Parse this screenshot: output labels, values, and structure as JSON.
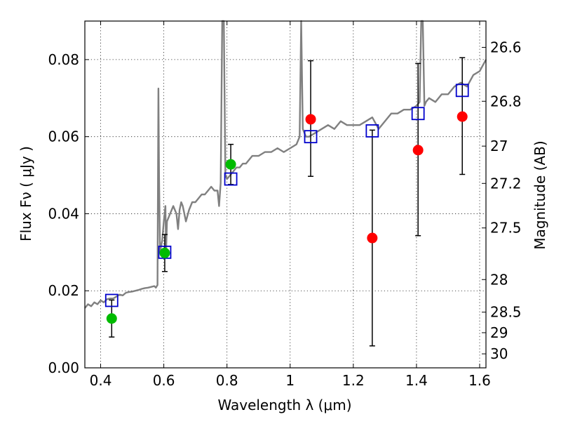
{
  "chart_data": {
    "type": "scatter",
    "xlabel": "Wavelength  λ (μm)",
    "ylabel": "Flux  Fν  ( μJy )",
    "ylabel_right": "Magnitude (AB)",
    "xlim": [
      0.35,
      1.62
    ],
    "ylim": [
      0.0,
      0.09
    ],
    "x_ticks": [
      0.4,
      0.6,
      0.8,
      1.0,
      1.2,
      1.4,
      1.6
    ],
    "x_tick_labels": [
      "0.4",
      "0.6",
      "0.8",
      "1",
      "1.2",
      "1.4",
      "1.6"
    ],
    "y_ticks": [
      0.0,
      0.02,
      0.04,
      0.06,
      0.08
    ],
    "y_tick_labels": [
      "0.00",
      "0.02",
      "0.04",
      "0.06",
      "0.08"
    ],
    "mag_ticks": [
      26.6,
      26.8,
      27,
      27.2,
      27.5,
      28,
      28.5,
      29,
      30
    ],
    "mag_tick_labels": [
      "26.6",
      "26.8",
      "27",
      "27.2",
      "27.5",
      "28",
      "28.5",
      "29",
      "30"
    ],
    "grid": true,
    "colors": {
      "spectrum": "#808080",
      "detection": "#00bb00",
      "upper": "#ff0000",
      "model": "#0000cc",
      "errorbar": "#000000"
    },
    "series": [
      {
        "name": "spectrum",
        "kind": "line",
        "x": [
          0.35,
          0.36,
          0.37,
          0.38,
          0.39,
          0.4,
          0.41,
          0.42,
          0.43,
          0.44,
          0.45,
          0.46,
          0.47,
          0.48,
          0.49,
          0.5,
          0.51,
          0.52,
          0.53,
          0.54,
          0.55,
          0.56,
          0.57,
          0.575,
          0.58,
          0.583,
          0.585,
          0.588,
          0.59,
          0.595,
          0.6,
          0.605,
          0.607,
          0.61,
          0.62,
          0.63,
          0.64,
          0.645,
          0.65,
          0.655,
          0.66,
          0.665,
          0.67,
          0.68,
          0.69,
          0.7,
          0.71,
          0.72,
          0.73,
          0.74,
          0.75,
          0.76,
          0.77,
          0.775,
          0.78,
          0.785,
          0.79,
          0.795,
          0.8,
          0.81,
          0.82,
          0.83,
          0.84,
          0.85,
          0.86,
          0.87,
          0.88,
          0.9,
          0.92,
          0.94,
          0.96,
          0.98,
          1.0,
          1.02,
          1.03,
          1.035,
          1.04,
          1.045,
          1.05,
          1.06,
          1.08,
          1.1,
          1.12,
          1.14,
          1.16,
          1.18,
          1.2,
          1.22,
          1.24,
          1.26,
          1.28,
          1.3,
          1.32,
          1.34,
          1.36,
          1.38,
          1.4,
          1.41,
          1.415,
          1.42,
          1.425,
          1.43,
          1.44,
          1.46,
          1.48,
          1.5,
          1.52,
          1.54,
          1.56,
          1.58,
          1.6,
          1.62
        ],
        "y": [
          0.0155,
          0.0165,
          0.016,
          0.017,
          0.0165,
          0.0175,
          0.017,
          0.0178,
          0.018,
          0.018,
          0.0185,
          0.019,
          0.0188,
          0.0195,
          0.0197,
          0.0198,
          0.02,
          0.0202,
          0.0205,
          0.0207,
          0.0208,
          0.021,
          0.0212,
          0.0208,
          0.0215,
          0.0725,
          0.05,
          0.03,
          0.031,
          0.033,
          0.038,
          0.042,
          0.03,
          0.038,
          0.04,
          0.042,
          0.04,
          0.036,
          0.041,
          0.043,
          0.042,
          0.04,
          0.038,
          0.041,
          0.043,
          0.043,
          0.044,
          0.045,
          0.045,
          0.046,
          0.047,
          0.046,
          0.046,
          0.042,
          0.048,
          0.09,
          0.09,
          0.05,
          0.049,
          0.05,
          0.051,
          0.052,
          0.052,
          0.053,
          0.053,
          0.054,
          0.055,
          0.055,
          0.056,
          0.056,
          0.057,
          0.056,
          0.057,
          0.058,
          0.06,
          0.09,
          0.062,
          0.061,
          0.06,
          0.06,
          0.061,
          0.062,
          0.063,
          0.062,
          0.064,
          0.063,
          0.063,
          0.063,
          0.064,
          0.065,
          0.062,
          0.064,
          0.066,
          0.066,
          0.067,
          0.067,
          0.068,
          0.069,
          0.09,
          0.09,
          0.068,
          0.069,
          0.07,
          0.069,
          0.071,
          0.071,
          0.073,
          0.074,
          0.073,
          0.076,
          0.077,
          0.08
        ]
      },
      {
        "name": "detections (green)",
        "kind": "points",
        "x": [
          0.435,
          0.603,
          0.812
        ],
        "y": [
          0.0128,
          0.0298,
          0.0528
        ],
        "yerr_low": [
          0.0048,
          0.0048,
          0.0052
        ],
        "yerr_high": [
          0.0048,
          0.0048,
          0.0052
        ]
      },
      {
        "name": "measurements (red)",
        "kind": "points",
        "x": [
          1.065,
          1.26,
          1.405,
          1.545
        ],
        "y": [
          0.0645,
          0.0337,
          0.0565,
          0.0652
        ],
        "yerr_low": [
          0.0148,
          0.028,
          0.0222,
          0.015
        ],
        "yerr_high": [
          0.0152,
          0.028,
          0.0225,
          0.0153
        ]
      },
      {
        "name": "model photometry (blue squares)",
        "kind": "markers",
        "x": [
          0.435,
          0.603,
          0.812,
          1.065,
          1.26,
          1.405,
          1.545
        ],
        "y": [
          0.0175,
          0.03,
          0.049,
          0.06,
          0.0615,
          0.066,
          0.072
        ]
      }
    ]
  }
}
